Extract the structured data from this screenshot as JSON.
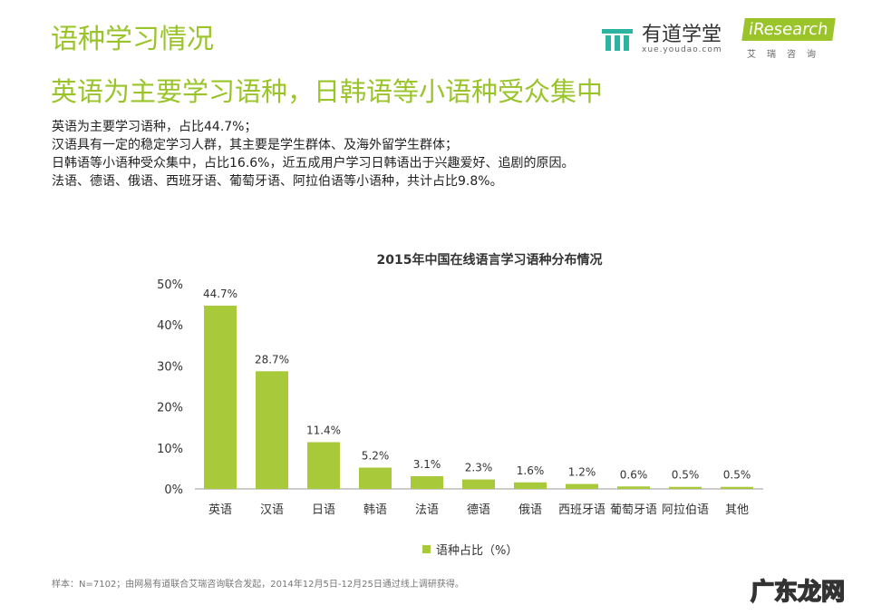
{
  "header": {
    "title": "语种学习情况",
    "subtitle": "英语为主要学习语种，日韩语等小语种受众集中"
  },
  "logos": {
    "youdao_name": "有道学堂",
    "youdao_url": "xue.youdao.com",
    "iresearch_name": "iResearch",
    "iresearch_cn": "艾瑞咨询"
  },
  "bullets": [
    "英语为主要学习语种，占比44.7%；",
    "汉语具有一定的稳定学习人群，其主要是学生群体、及海外留学生群体；",
    "日韩语等小语种受众集中，占比16.6%，近五成用户学习日韩语出于兴趣爱好、追剧的原因。",
    "法语、德语、俄语、西班牙语、葡萄牙语、阿拉伯语等小语种，共计占比9.8%。"
  ],
  "chart_data": {
    "type": "bar",
    "title": "2015年中国在线语言学习语种分布情况",
    "categories": [
      "英语",
      "汉语",
      "日语",
      "韩语",
      "法语",
      "德语",
      "俄语",
      "西班牙语",
      "葡萄牙语",
      "阿拉伯语",
      "其他"
    ],
    "series": [
      {
        "name": "语种占比（%）",
        "values": [
          44.7,
          28.7,
          11.4,
          5.2,
          3.1,
          2.3,
          1.6,
          1.2,
          0.6,
          0.5,
          0.5
        ]
      }
    ],
    "ylim": [
      0,
      50
    ],
    "yticks": [
      "0%",
      "10%",
      "20%",
      "30%",
      "40%",
      "50%"
    ],
    "grid": false,
    "legend": "bottom",
    "bar_color": "#a8c93a"
  },
  "footnote": "样本：N=7102；由网易有道联合艾瑞咨询联合发起，2014年12月5日-12月25日通过线上调研获得。",
  "watermark": "广东龙网"
}
